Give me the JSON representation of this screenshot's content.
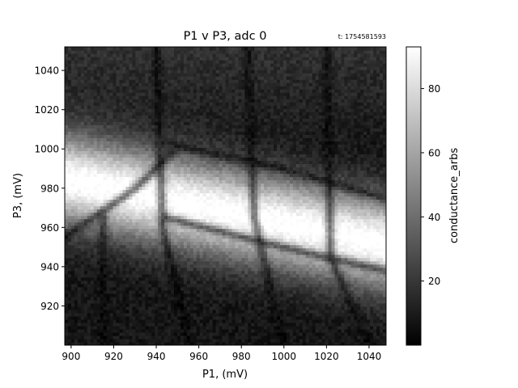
{
  "chart_data": {
    "type": "heatmap",
    "title": "P1 v P3, adc 0",
    "timestamp": "t: 1754581593",
    "xlabel": "P1, (mV)",
    "ylabel": "P3, (mV)",
    "colorbar_label": "conductance_arbs",
    "colormap": "gray",
    "xlim": [
      897,
      1048
    ],
    "ylim": [
      900,
      1052
    ],
    "clim": [
      0,
      93
    ],
    "x_ticks": [
      900,
      920,
      940,
      960,
      980,
      1000,
      1020,
      1040
    ],
    "y_ticks": [
      920,
      940,
      960,
      980,
      1000,
      1020,
      1040
    ],
    "colorbar_ticks": [
      20,
      40,
      60,
      80
    ],
    "grid": false,
    "bright_band": {
      "y_at_x_min": 985,
      "slope_mV_per_mV": -0.22,
      "peak": 88
    },
    "dark_lines": [
      {
        "points": [
          [
            897,
            955
          ],
          [
            930,
            980
          ],
          [
            947,
            998
          ]
        ]
      },
      {
        "points": [
          [
            945,
            1003
          ],
          [
            1000,
            990
          ],
          [
            1048,
            975
          ]
        ]
      },
      {
        "points": [
          [
            915,
            965
          ],
          [
            915,
            900
          ]
        ]
      },
      {
        "points": [
          [
            945,
            965
          ],
          [
            1000,
            950
          ],
          [
            1048,
            938
          ]
        ]
      },
      {
        "points": [
          [
            940,
            1052
          ],
          [
            943,
            960
          ],
          [
            956,
            900
          ]
        ]
      },
      {
        "points": [
          [
            983,
            1052
          ],
          [
            986,
            965
          ],
          [
            1000,
            900
          ]
        ]
      },
      {
        "points": [
          [
            1020,
            1052
          ],
          [
            1022,
            945
          ],
          [
            1040,
            900
          ]
        ]
      }
    ]
  }
}
